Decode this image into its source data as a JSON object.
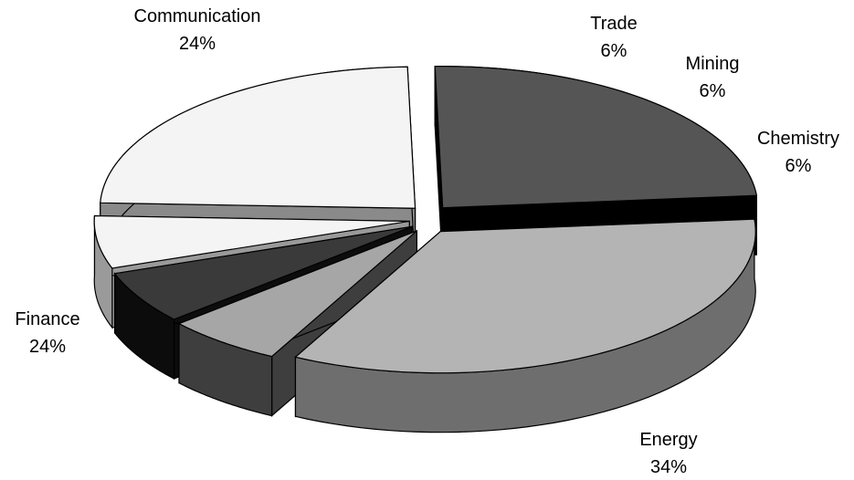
{
  "chart_data": {
    "type": "pie",
    "title": "",
    "slices": [
      {
        "label": "Energy",
        "value": 34,
        "pct_text": "34%",
        "top": "#b4b4b4",
        "side": "#6e6e6e"
      },
      {
        "label": "Chemistry",
        "value": 6,
        "pct_text": "6%",
        "top": "#a6a6a6",
        "side": "#3e3e3e"
      },
      {
        "label": "Mining",
        "value": 6,
        "pct_text": "6%",
        "top": "#3a3a3a",
        "side": "#0c0c0c"
      },
      {
        "label": "Trade",
        "value": 6,
        "pct_text": "6%",
        "top": "#f4f4f4",
        "side": "#9a9a9a"
      },
      {
        "label": "Communication",
        "value": 24,
        "pct_text": "24%",
        "top": "#f4f4f4",
        "side": "#8a8a8a"
      },
      {
        "label": "Finance",
        "value": 24,
        "pct_text": "24%",
        "top": "#555555",
        "side": "#000000"
      }
    ],
    "exploded": true,
    "three_d": true,
    "legend": "none"
  }
}
